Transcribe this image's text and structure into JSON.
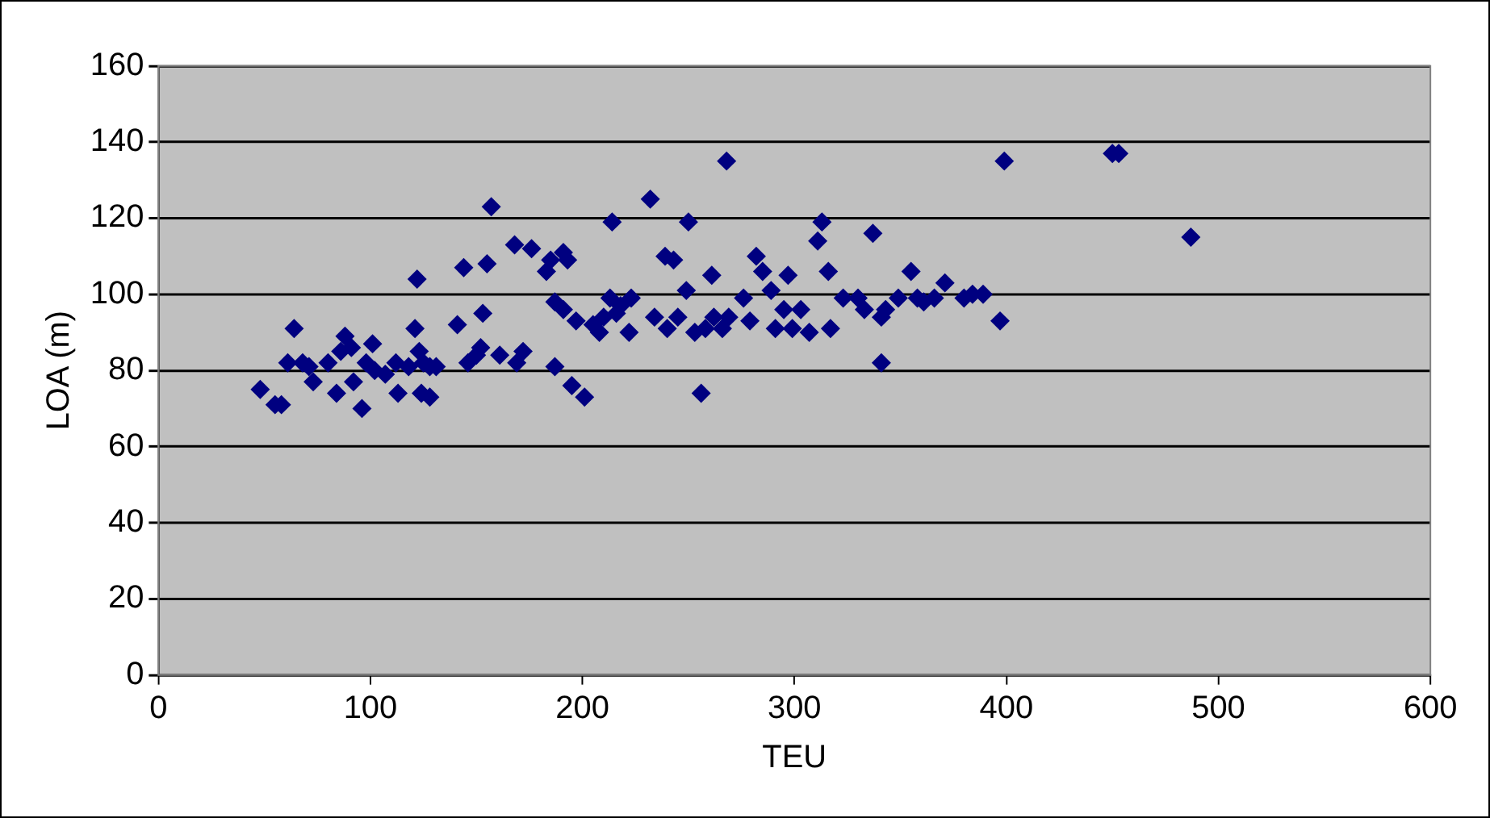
{
  "chart_data": {
    "type": "scatter",
    "xlabel": "TEU",
    "ylabel": "LOA (m)",
    "marker": "diamond",
    "grid": "y",
    "legend": false,
    "color": "#000080",
    "xlim": [
      0,
      600
    ],
    "xticks": [
      0,
      100,
      200,
      300,
      400,
      500,
      600
    ],
    "ylim": [
      0,
      160
    ],
    "yticks": [
      0,
      20,
      40,
      60,
      80,
      100,
      120,
      140,
      160
    ],
    "x": [
      48,
      55,
      58,
      61,
      64,
      68,
      71,
      73,
      80,
      84,
      86,
      88,
      91,
      92,
      96,
      98,
      101,
      102,
      107,
      112,
      113,
      118,
      121,
      122,
      123,
      124,
      125,
      128,
      128,
      131,
      141,
      144,
      146,
      150,
      152,
      153,
      155,
      157,
      161,
      168,
      169,
      172,
      176,
      183,
      185,
      187,
      187,
      191,
      191,
      193,
      195,
      197,
      201,
      205,
      208,
      210,
      213,
      214,
      216,
      218,
      222,
      223,
      232,
      234,
      239,
      240,
      243,
      245,
      249,
      250,
      253,
      256,
      258,
      261,
      262,
      266,
      268,
      269,
      276,
      279,
      282,
      285,
      289,
      291,
      295,
      297,
      299,
      303,
      307,
      311,
      313,
      316,
      317,
      323,
      330,
      333,
      337,
      341,
      341,
      343,
      349,
      355,
      358,
      361,
      366,
      371,
      380,
      384,
      389,
      397,
      399,
      450,
      453,
      487
    ],
    "values": [
      75,
      71,
      71,
      82,
      91,
      82,
      81,
      77,
      82,
      74,
      85,
      89,
      86,
      77,
      70,
      82,
      87,
      80,
      79,
      82,
      74,
      81,
      91,
      104,
      85,
      74,
      82,
      73,
      81,
      81,
      92,
      107,
      82,
      84,
      86,
      95,
      108,
      123,
      84,
      113,
      82,
      85,
      112,
      106,
      109,
      98,
      81,
      111,
      96,
      109,
      76,
      93,
      73,
      92,
      90,
      94,
      99,
      119,
      95,
      97,
      90,
      99,
      125,
      94,
      110,
      91,
      109,
      94,
      101,
      119,
      90,
      74,
      91,
      105,
      94,
      91,
      135,
      94,
      99,
      93,
      110,
      106,
      101,
      91,
      96,
      105,
      91,
      96,
      90,
      114,
      119,
      106,
      91,
      99,
      99,
      96,
      116,
      94,
      82,
      96,
      99,
      106,
      99,
      98,
      99,
      103,
      99,
      100,
      100,
      93,
      135,
      137,
      137,
      115
    ]
  }
}
